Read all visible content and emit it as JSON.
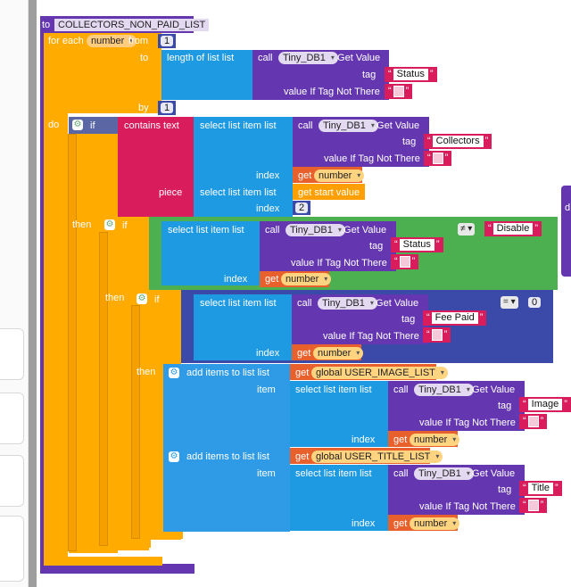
{
  "procedure": {
    "to": "to",
    "name": "COLLECTORS_NON_PAID_LIST"
  },
  "foreach": {
    "label": "for each",
    "var": "number",
    "from": "from",
    "from_val": "1",
    "to": "to",
    "by": "by",
    "by_val": "1",
    "do": "do"
  },
  "length_label": "length of list  list",
  "call": "call",
  "db": "Tiny_DB1",
  "getvalue": ".Get Value",
  "tag": "tag",
  "vitnt": "value If Tag Not There",
  "index": "index",
  "get": "get",
  "if": "if",
  "then": "then",
  "item": "item",
  "sel_item": "select list item  list",
  "status": "Status",
  "collectors": "Collectors",
  "contains": "contains  text",
  "piece": "piece",
  "start_value": "get start value",
  "index2": "2",
  "neq": "≠ ▾",
  "disable": "Disable",
  "eq": "= ▾",
  "zero": "0",
  "fee_paid": "Fee Paid",
  "add_items": "add items to list  list",
  "user_image_list": "global USER_IMAGE_LIST",
  "user_title_list": "global USER_TITLE_LIST",
  "image": "Image",
  "title": "Title",
  "side_d": "d"
}
